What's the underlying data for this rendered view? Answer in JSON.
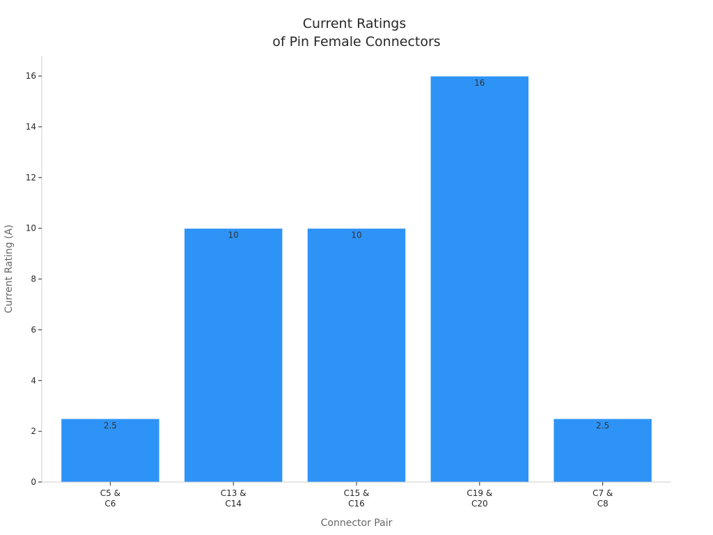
{
  "chart_data": {
    "type": "bar",
    "title_lines": [
      "Current Ratings",
      "of Pin Female Connectors"
    ],
    "xlabel": "Connector Pair",
    "ylabel": "Current Rating (A)",
    "categories": [
      [
        "C5 &",
        "C6"
      ],
      [
        "C13 &",
        "C14"
      ],
      [
        "C15 &",
        "C16"
      ],
      [
        "C19 &",
        "C20"
      ],
      [
        "C7 &",
        "C8"
      ]
    ],
    "values": [
      2.5,
      10,
      10,
      16,
      2.5
    ],
    "data_labels": [
      "2.5",
      "10",
      "10",
      "16",
      "2.5"
    ],
    "ylim": [
      0,
      16.8
    ],
    "yticks": [
      0,
      2,
      4,
      6,
      8,
      10,
      12,
      14,
      16
    ],
    "bar_color": "#2e93f7",
    "grid": false,
    "legend": "none"
  }
}
